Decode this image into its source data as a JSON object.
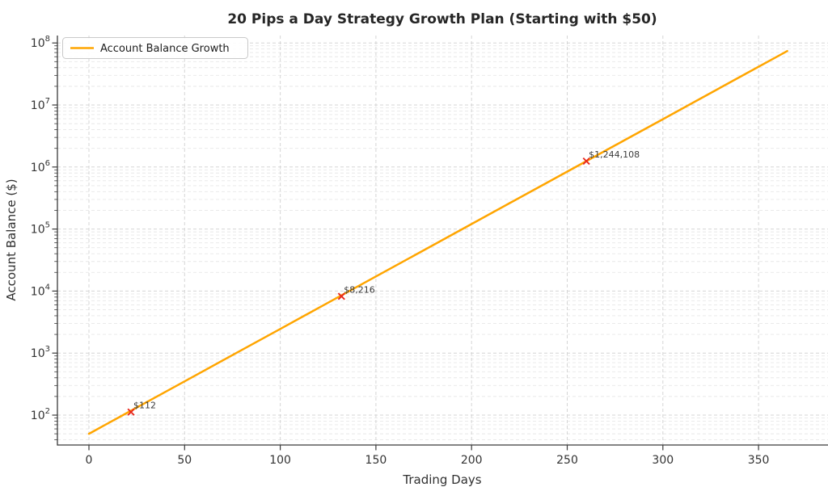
{
  "figure": {
    "title": "20 Pips a Day Strategy Growth Plan (Starting with $50)"
  },
  "chart_data": {
    "type": "line",
    "title": "20 Pips a Day Strategy Growth Plan (Starting with $50)",
    "xlabel": "Trading Days",
    "ylabel": "Account Balance ($)",
    "xscale": "linear",
    "yscale": "log",
    "xlim": [
      -16,
      386
    ],
    "ylim": [
      32,
      130000000
    ],
    "xticks": [
      0,
      50,
      100,
      150,
      200,
      250,
      300,
      350
    ],
    "ytick_exponents": [
      2,
      3,
      4,
      5,
      6,
      7,
      8
    ],
    "grid": true,
    "legend": {
      "position": "upper left",
      "label": "Account Balance Growth"
    },
    "line_color": "#FFA500",
    "marker_color": "#E8281E",
    "grid_major_color": "#d5d5d5",
    "grid_minor_color": "#e7e7e7",
    "series": [
      {
        "name": "Account Balance Growth",
        "x": [
          0,
          20,
          40,
          60,
          80,
          100,
          120,
          140,
          160,
          180,
          200,
          220,
          240,
          260,
          280,
          300,
          320,
          340,
          360,
          365
        ],
        "y": [
          50,
          109,
          237,
          517,
          1126,
          2453,
          5345,
          11646,
          25370,
          55270,
          120400,
          262300,
          571400,
          1244108,
          2711000,
          5906000,
          12870000,
          28030000,
          61060000,
          74180000
        ]
      }
    ],
    "annotations": [
      {
        "x": 22,
        "y": 112,
        "label": "$112"
      },
      {
        "x": 132,
        "y": 8216,
        "label": "$8,216"
      },
      {
        "x": 260,
        "y": 1244108,
        "label": "$1,244,108"
      }
    ]
  }
}
